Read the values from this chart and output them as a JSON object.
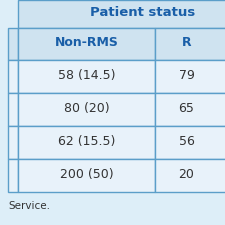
{
  "title": "Patient status",
  "col1_header": "Non-RMS",
  "col2_header": "R",
  "rows": [
    [
      "58 (14.5)",
      "79"
    ],
    [
      "80 (20)",
      "65"
    ],
    [
      "62 (15.5)",
      "56"
    ],
    [
      "200 (50)",
      "20"
    ]
  ],
  "footer": "Service.",
  "header_bg": "#cfe3f0",
  "row_bg": "#e8f2fa",
  "header_text_color": "#1a5fa8",
  "row_text_color": "#333333",
  "border_color": "#5b9ec9",
  "title_color": "#1a5fa8",
  "bg_color": "#ddeef8",
  "outer_bg": "#d0e4f0"
}
